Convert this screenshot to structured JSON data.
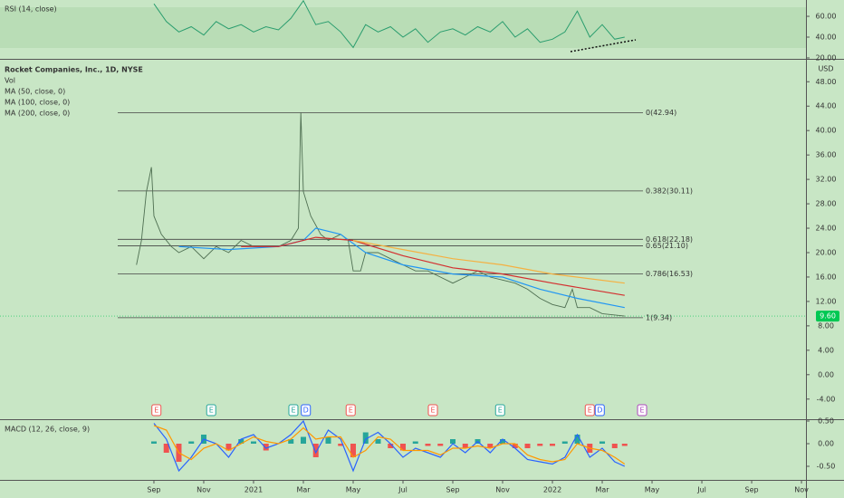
{
  "chart_data": [
    {
      "type": "line",
      "title": "RSI (14, close)",
      "x": [
        1,
        1.5,
        2,
        2.5,
        3,
        3.5,
        4,
        4.5,
        5,
        5.5,
        6,
        6.5,
        7,
        7.5,
        8,
        8.5,
        9,
        9.5,
        10,
        10.5,
        11,
        11.5,
        12,
        12.5,
        13,
        13.5,
        14,
        14.5,
        15,
        15.5,
        16,
        16.5,
        17,
        17.5,
        18,
        18.5,
        19,
        19.5,
        19.9
      ],
      "series": [
        {
          "color": "#2a9d6e",
          "values": [
            72,
            55,
            45,
            50,
            42,
            55,
            48,
            52,
            45,
            50,
            47,
            58,
            75,
            52,
            55,
            45,
            30,
            52,
            45,
            50,
            40,
            48,
            35,
            45,
            48,
            42,
            50,
            45,
            55,
            40,
            48,
            35,
            38,
            45,
            65,
            40,
            52,
            38,
            40
          ]
        }
      ],
      "ylim": [
        19.1,
        75.7
      ],
      "yticks": [
        {
          "value": 60,
          "label": "60.00"
        },
        {
          "value": 40,
          "label": "40.00"
        },
        {
          "value": 20,
          "label": "20.00"
        }
      ]
    },
    {
      "type": "line",
      "title": "Rocket Companies, Inc., 1D, NYSE",
      "unit": "USD",
      "legend": [
        "Vol"
      ],
      "series": [
        {
          "name": "Rocket Companies, Inc., 1D, NYSE",
          "color": "#4f6f52",
          "x": [
            0.3,
            0.5,
            0.7,
            0.9,
            1,
            1.3,
            1.7,
            2,
            2.5,
            3,
            3.5,
            4,
            4.5,
            5,
            5.5,
            6,
            6.5,
            6.8,
            6.9,
            7,
            7.3,
            7.7,
            8,
            8.5,
            8.8,
            9,
            9.3,
            9.5,
            10,
            10.5,
            11,
            11.5,
            12,
            12.5,
            13,
            13.5,
            14,
            14.5,
            15,
            15.5,
            16,
            16.5,
            17,
            17.5,
            17.8,
            18,
            18.5,
            19,
            19.9
          ],
          "values": [
            18,
            22,
            30,
            34,
            26,
            23,
            21,
            20,
            21,
            19,
            21,
            20,
            22,
            21,
            21,
            21,
            22,
            24,
            42.9,
            30,
            26,
            23,
            22,
            23,
            22,
            17,
            17,
            20,
            20,
            19,
            18,
            17,
            17,
            16,
            15,
            16,
            17,
            16,
            15.5,
            15,
            14,
            12.5,
            11.5,
            11,
            14,
            11,
            11,
            10,
            9.6
          ]
        },
        {
          "name": "MA (50, close, 0)",
          "color": "#2196f3",
          "x": [
            2,
            4,
            6,
            7,
            7.5,
            8.5,
            9.5,
            11,
            13,
            15,
            16.5,
            18,
            19.9
          ],
          "values": [
            21,
            20.5,
            21,
            22,
            24,
            23,
            20,
            18,
            16.5,
            16,
            14,
            12.5,
            11
          ]
        },
        {
          "name": "MA (100, close, 0)",
          "color": "#d32f2f",
          "x": [
            4.5,
            6,
            7.5,
            9,
            11,
            13,
            15,
            17,
            19.9
          ],
          "values": [
            21,
            21,
            22.5,
            22,
            19.5,
            17.5,
            16.5,
            15,
            13
          ]
        },
        {
          "name": "MA (200, close, 0)",
          "color": "#f5b041",
          "x": [
            9,
            11,
            13,
            15,
            17,
            19.9
          ],
          "values": [
            22,
            20.5,
            19,
            18,
            16.5,
            15
          ]
        }
      ],
      "levels": [
        {
          "value": 42.94,
          "label": "0(42.94)"
        },
        {
          "value": 30.11,
          "label": "0.382(30.11)"
        },
        {
          "value": 22.18,
          "label": "0.618(22.18)"
        },
        {
          "value": 21.1,
          "label": "0.65(21.10)"
        },
        {
          "value": 16.53,
          "label": "0.786(16.53)"
        },
        {
          "value": 9.34,
          "label": "1(9.34)"
        }
      ],
      "last_price": {
        "value": 9.6,
        "label": "9.60",
        "color": "#00c853"
      },
      "events": [
        {
          "x": 1.1,
          "label": "E",
          "color": "#ef5350"
        },
        {
          "x": 3.3,
          "label": "E",
          "color": "#26a69a"
        },
        {
          "x": 6.6,
          "label": "E",
          "color": "#26a69a"
        },
        {
          "x": 7.1,
          "label": "D",
          "color": "#2962ff"
        },
        {
          "x": 8.9,
          "label": "E",
          "color": "#ef5350"
        },
        {
          "x": 12.2,
          "label": "E",
          "color": "#ef5350"
        },
        {
          "x": 14.9,
          "label": "E",
          "color": "#26a69a"
        },
        {
          "x": 18.5,
          "label": "E",
          "color": "#ef5350"
        },
        {
          "x": 18.9,
          "label": "D",
          "color": "#2962ff"
        },
        {
          "x": 20.6,
          "label": "E",
          "color": "#ab47bc"
        }
      ],
      "ylim": [
        -7.3,
        51.6
      ],
      "yticks": [
        {
          "value": 48,
          "label": "48.00"
        },
        {
          "value": 44,
          "label": "44.00"
        },
        {
          "value": 40,
          "label": "40.00"
        },
        {
          "value": 36,
          "label": "36.00"
        },
        {
          "value": 32,
          "label": "32.00"
        },
        {
          "value": 28,
          "label": "28.00"
        },
        {
          "value": 24,
          "label": "24.00"
        },
        {
          "value": 20,
          "label": "20.00"
        },
        {
          "value": 16,
          "label": "16.00"
        },
        {
          "value": 12,
          "label": "12.00"
        },
        {
          "value": 8,
          "label": "8.00"
        },
        {
          "value": 4,
          "label": "4.00"
        },
        {
          "value": 0,
          "label": "0.00"
        },
        {
          "value": -4,
          "label": "-4.00"
        }
      ]
    },
    {
      "type": "macd",
      "title": "MACD (12, 26, close, 9)",
      "x": [
        1,
        1.5,
        2,
        2.5,
        3,
        3.5,
        4,
        4.5,
        5,
        5.5,
        6,
        6.5,
        7,
        7.5,
        8,
        8.5,
        9,
        9.5,
        10,
        10.5,
        11,
        11.5,
        12,
        12.5,
        13,
        13.5,
        14,
        14.5,
        15,
        15.5,
        16,
        16.5,
        17,
        17.5,
        18,
        18.5,
        19,
        19.5,
        19.9
      ],
      "series": [
        {
          "color": "#2962ff",
          "values": [
            0.45,
            0.1,
            -0.6,
            -0.3,
            0.1,
            0.0,
            -0.3,
            0.1,
            0.2,
            -0.1,
            0.0,
            0.2,
            0.5,
            -0.2,
            0.3,
            0.1,
            -0.6,
            0.1,
            0.25,
            0.0,
            -0.3,
            -0.1,
            -0.2,
            -0.3,
            0.0,
            -0.2,
            0.05,
            -0.2,
            0.1,
            -0.1,
            -0.35,
            -0.4,
            -0.45,
            -0.3,
            0.2,
            -0.3,
            -0.1,
            -0.4,
            -0.5
          ]
        },
        {
          "color": "#ff9800",
          "values": [
            0.4,
            0.3,
            -0.2,
            -0.35,
            -0.1,
            0.0,
            -0.15,
            0.0,
            0.15,
            0.05,
            0.0,
            0.1,
            0.35,
            0.1,
            0.15,
            0.15,
            -0.3,
            -0.15,
            0.15,
            0.1,
            -0.15,
            -0.15,
            -0.15,
            -0.25,
            -0.1,
            -0.1,
            -0.05,
            -0.1,
            0.0,
            0.0,
            -0.25,
            -0.35,
            -0.4,
            -0.35,
            0.0,
            -0.1,
            -0.15,
            -0.3,
            -0.45
          ]
        }
      ],
      "histogram": {
        "color": "#26a69a",
        "negative_color": "#ef5350",
        "values": [
          0.05,
          -0.2,
          -0.4,
          0.05,
          0.2,
          0.0,
          -0.15,
          0.1,
          0.05,
          -0.15,
          0.0,
          0.1,
          0.15,
          -0.3,
          0.15,
          -0.05,
          -0.3,
          0.25,
          0.1,
          -0.1,
          -0.15,
          0.05,
          -0.05,
          -0.05,
          0.1,
          -0.1,
          0.1,
          -0.1,
          0.1,
          -0.1,
          -0.1,
          -0.05,
          -0.05,
          0.05,
          0.2,
          -0.2,
          0.05,
          -0.1,
          -0.05
        ]
      },
      "ylim": [
        -0.8,
        0.52
      ],
      "yticks": [
        {
          "value": 0.5,
          "label": "0.50"
        },
        {
          "value": 0,
          "label": "0.00"
        },
        {
          "value": -0.5,
          "label": "-0.50"
        }
      ],
      "xlim": [
        -5.18,
        27.18
      ],
      "xticks": [
        {
          "value": 1,
          "label": "Sep"
        },
        {
          "value": 3,
          "label": "Nov"
        },
        {
          "value": 5,
          "label": "2021"
        },
        {
          "value": 7,
          "label": "Mar"
        },
        {
          "value": 9,
          "label": "May"
        },
        {
          "value": 11,
          "label": "Jul"
        },
        {
          "value": 13,
          "label": "Sep"
        },
        {
          "value": 15,
          "label": "Nov"
        },
        {
          "value": 17,
          "label": "2022"
        },
        {
          "value": 19,
          "label": "Mar"
        },
        {
          "value": 21,
          "label": "May"
        },
        {
          "value": 23,
          "label": "Jul"
        },
        {
          "value": 25,
          "label": "Sep"
        },
        {
          "value": 27,
          "label": "Nov"
        }
      ]
    }
  ]
}
